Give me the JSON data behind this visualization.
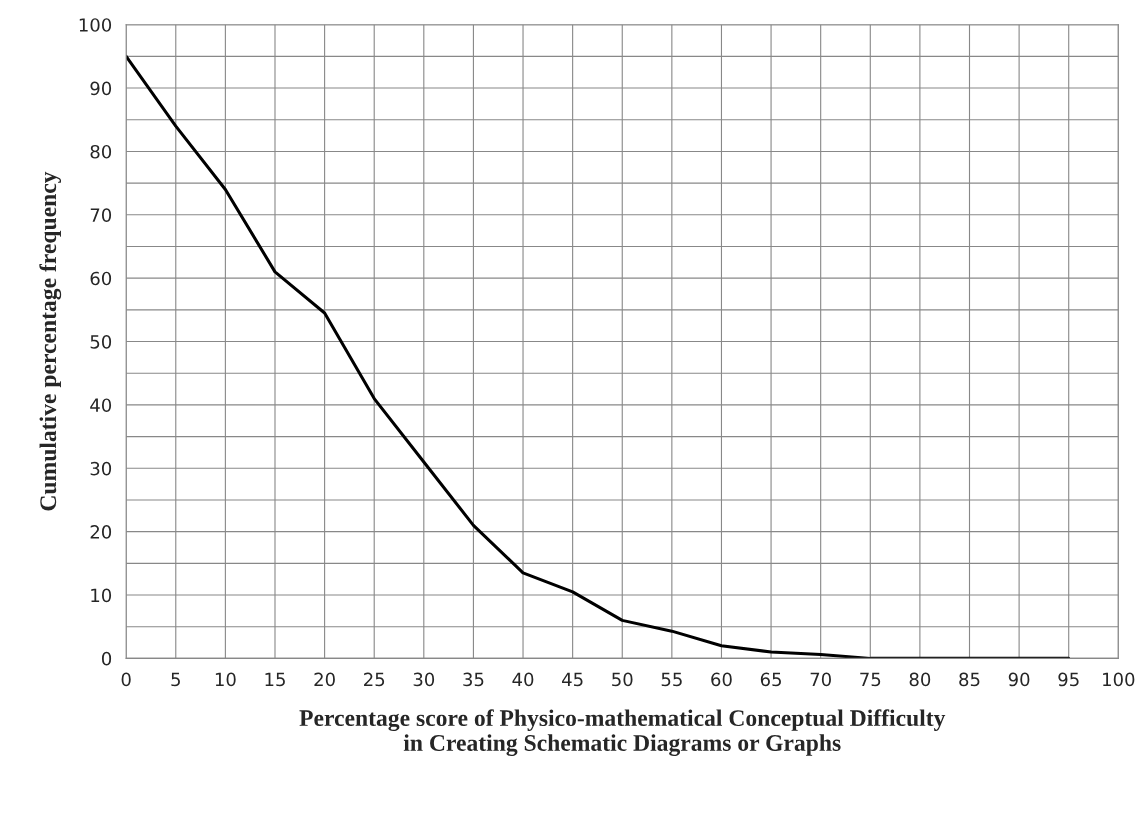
{
  "chart_data": {
    "type": "line",
    "xlabel": "Percentage score of Physico-mathematical Conceptual Difficulty\nin Creating Schematic Diagrams or Graphs",
    "ylabel": "Cumulative percentage frequency",
    "series": [
      {
        "color": "#000000",
        "x": [
          0,
          5,
          10,
          15,
          20,
          25,
          30,
          35,
          40,
          45,
          50,
          55,
          60,
          65,
          70,
          75,
          80,
          85,
          90,
          95
        ],
        "values": [
          95,
          84,
          74,
          61,
          54.5,
          41,
          31,
          21,
          13.5,
          10.5,
          6,
          4.3,
          2,
          1,
          0.6,
          0,
          0,
          0,
          0,
          0
        ]
      }
    ],
    "xlim": [
      0,
      100
    ],
    "xticks": [
      0,
      5,
      10,
      15,
      20,
      25,
      30,
      35,
      40,
      45,
      50,
      55,
      60,
      65,
      70,
      75,
      80,
      85,
      90,
      95,
      100
    ],
    "ylim": [
      0,
      100
    ],
    "yticks": [
      0,
      {
        "value": 5,
        "label": null
      },
      10,
      {
        "value": 15,
        "label": null
      },
      20,
      {
        "value": 25,
        "label": null
      },
      30,
      {
        "value": 35,
        "label": null
      },
      40,
      {
        "value": 45,
        "label": null
      },
      50,
      {
        "value": 55,
        "label": null
      },
      60,
      {
        "value": 65,
        "label": null
      },
      70,
      {
        "value": 75,
        "label": null
      },
      80,
      {
        "value": 85,
        "label": null
      },
      90,
      {
        "value": 95,
        "label": null
      },
      100
    ],
    "grid": true,
    "marker": "none",
    "line_style": "solid",
    "legend": false
  }
}
